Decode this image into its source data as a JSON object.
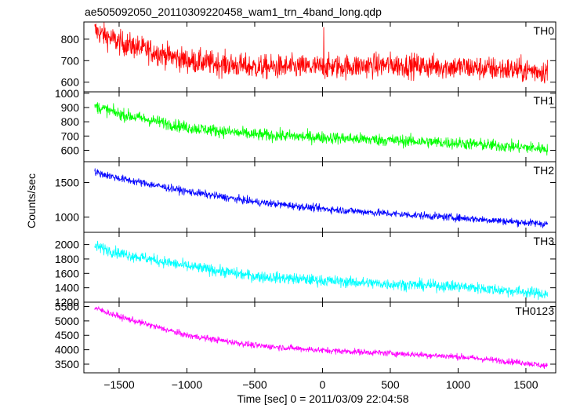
{
  "chart_data": {
    "type": "line",
    "title": "ae505092050_20110309220458_wam1_trn_4band_long.qdp",
    "xlabel": "Time [sec] 0 = 2011/03/09 22:04:58",
    "ylabel": "Counts/sec",
    "xlim": [
      -1760,
      1720
    ],
    "x_range_data": [
      -1680,
      1660
    ],
    "xticks": [
      -1500,
      -1000,
      -500,
      0,
      500,
      1000,
      1500
    ],
    "xtick_labels": [
      "−1500",
      "−1000",
      "−500",
      "0",
      "500",
      "1000",
      "1500"
    ],
    "panels": [
      {
        "name": "TH0",
        "color": "#ff0000",
        "ylim": [
          555,
          880
        ],
        "yticks": [
          600,
          700,
          800
        ],
        "ytick_labels": [
          "600",
          "700",
          "800"
        ],
        "trend": [
          [
            -1680,
            840
          ],
          [
            -1500,
            785
          ],
          [
            -1000,
            700
          ],
          [
            -500,
            670
          ],
          [
            0,
            670
          ],
          [
            500,
            680
          ],
          [
            1000,
            670
          ],
          [
            1500,
            655
          ],
          [
            1660,
            650
          ]
        ],
        "noise": 40,
        "spikes": [
          [
            10,
            855
          ]
        ]
      },
      {
        "name": "TH1",
        "color": "#00ff00",
        "ylim": [
          520,
          1010
        ],
        "yticks": [
          600,
          700,
          800,
          900,
          1000
        ],
        "ytick_labels": [
          "600",
          "700",
          "800",
          "900",
          "1000"
        ],
        "trend": [
          [
            -1680,
            910
          ],
          [
            -1500,
            855
          ],
          [
            -1000,
            760
          ],
          [
            -500,
            710
          ],
          [
            0,
            690
          ],
          [
            500,
            670
          ],
          [
            1000,
            650
          ],
          [
            1500,
            620
          ],
          [
            1660,
            610
          ]
        ],
        "noise": 30,
        "spikes": []
      },
      {
        "name": "TH2",
        "color": "#0000ff",
        "ylim": [
          780,
          1800
        ],
        "yticks": [
          1000,
          1500
        ],
        "ytick_labels": [
          "1000",
          "1500"
        ],
        "trend": [
          [
            -1680,
            1650
          ],
          [
            -1500,
            1560
          ],
          [
            -1000,
            1370
          ],
          [
            -500,
            1220
          ],
          [
            0,
            1120
          ],
          [
            500,
            1050
          ],
          [
            1000,
            990
          ],
          [
            1500,
            920
          ],
          [
            1660,
            900
          ]
        ],
        "noise": 38,
        "spikes": []
      },
      {
        "name": "TH3",
        "color": "#00ffff",
        "ylim": [
          1200,
          2170
        ],
        "yticks": [
          1200,
          1400,
          1600,
          1800,
          2000
        ],
        "ytick_labels": [
          "1200",
          "1400",
          "1600",
          "1800",
          "2000"
        ],
        "trend": [
          [
            -1680,
            1980
          ],
          [
            -1500,
            1880
          ],
          [
            -1000,
            1700
          ],
          [
            -500,
            1560
          ],
          [
            0,
            1500
          ],
          [
            500,
            1450
          ],
          [
            1000,
            1420
          ],
          [
            1500,
            1340
          ],
          [
            1660,
            1310
          ]
        ],
        "noise": 55,
        "spikes": []
      },
      {
        "name": "TH0123",
        "color": "#ff00ff",
        "ylim": [
          3200,
          5650
        ],
        "yticks": [
          3500,
          4000,
          4500,
          5000,
          5500
        ],
        "ytick_labels": [
          "3500",
          "4000",
          "4500",
          "5000",
          "5500"
        ],
        "trend": [
          [
            -1680,
            5450
          ],
          [
            -1500,
            5150
          ],
          [
            -1000,
            4500
          ],
          [
            -500,
            4150
          ],
          [
            0,
            3980
          ],
          [
            500,
            3880
          ],
          [
            1000,
            3760
          ],
          [
            1500,
            3540
          ],
          [
            1660,
            3430
          ]
        ],
        "noise": 75,
        "spikes": []
      }
    ]
  }
}
